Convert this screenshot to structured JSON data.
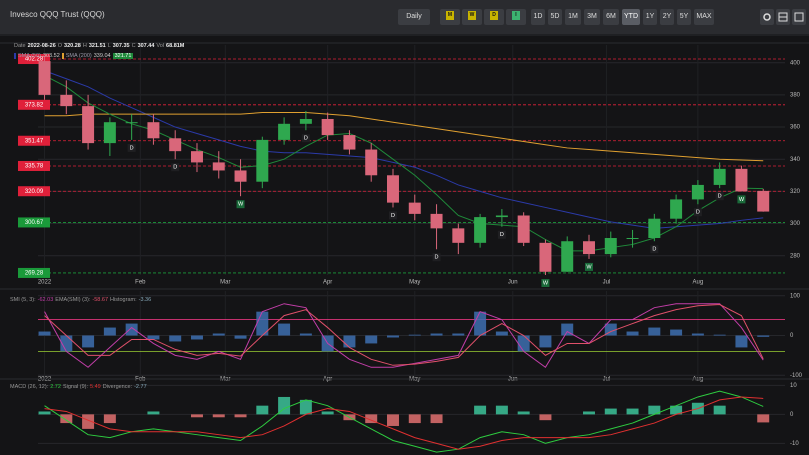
{
  "header": {
    "title": "Invesco QQQ Trust (QQQ)",
    "interval": "Daily",
    "chart_styles": [
      {
        "label": "M",
        "color": "#c8b400"
      },
      {
        "label": "W",
        "color": "#c8b400"
      },
      {
        "label": "D",
        "color": "#c8b400"
      },
      {
        "label": "I",
        "color": "#3cb371"
      }
    ],
    "ranges": [
      "1D",
      "5D",
      "1M",
      "3M",
      "6M",
      "YTD",
      "1Y",
      "2Y",
      "5Y",
      "MAX"
    ],
    "active_range": 5
  },
  "chart_data": [
    {
      "type": "candlestick",
      "readout": [
        {
          "label": "Date",
          "value": "2022-08-26"
        },
        {
          "label": "O",
          "value": 320.28
        },
        {
          "label": "H",
          "value": 321.51
        },
        {
          "label": "L",
          "value": 307.35
        },
        {
          "label": "C",
          "value": 307.44
        },
        {
          "label": "Vol",
          "value": "68.81M"
        }
      ],
      "open": [
        401,
        380,
        373,
        350,
        363,
        363,
        353,
        345,
        338,
        333,
        326,
        352,
        362,
        365,
        355,
        346,
        330,
        313,
        306,
        297,
        288,
        304,
        305,
        288,
        270,
        289,
        281,
        291,
        291,
        303,
        315,
        324,
        334,
        320.28
      ],
      "high": [
        404,
        389,
        380,
        366,
        368,
        368,
        358,
        350,
        345,
        340,
        354,
        366,
        370,
        369,
        358,
        350,
        334,
        318,
        312,
        300,
        306,
        309,
        307,
        290,
        292,
        293,
        295,
        296,
        306,
        318,
        327,
        338,
        336,
        321.51
      ],
      "low": [
        377,
        368,
        346,
        342,
        352,
        349,
        340,
        332,
        328,
        317,
        322,
        349,
        358,
        352,
        343,
        326,
        310,
        302,
        284,
        281,
        285,
        298,
        286,
        268,
        270,
        278,
        279,
        285,
        289,
        300,
        312,
        322,
        320,
        307.35
      ],
      "close": [
        380,
        373,
        350,
        363,
        363,
        353,
        345,
        338,
        333,
        326,
        352,
        362,
        365,
        355,
        346,
        330,
        313,
        306,
        297,
        288,
        304,
        305,
        288,
        270,
        289,
        281,
        291,
        291,
        303,
        315,
        324,
        334,
        320,
        307.44
      ],
      "up_color": "#2fa84f",
      "down_color": "#d9677a",
      "overlays": [
        {
          "name": "SMA (50)",
          "color": "#2b3aa8",
          "values": [
            395,
            390,
            385,
            378,
            372,
            366,
            360,
            356,
            352,
            348,
            345,
            344,
            344,
            343,
            342,
            341,
            338,
            335,
            330,
            324,
            320,
            316,
            313,
            310,
            307,
            304,
            301,
            299,
            297,
            298,
            299,
            300,
            302,
            303.52
          ]
        },
        {
          "name": "SMA (200)",
          "color": "#e0a030",
          "values": [
            367,
            367,
            368,
            368,
            368,
            368,
            368,
            368,
            368,
            368,
            369,
            369,
            369,
            368,
            367,
            365,
            363,
            361,
            359,
            357,
            355,
            353,
            351,
            349,
            347,
            346,
            345,
            344,
            343,
            342,
            341,
            340,
            339.5,
            339.04
          ]
        },
        {
          "color": "#1f8a3a",
          "values": [
            392,
            385,
            375,
            368,
            362,
            358,
            352,
            346,
            341,
            335,
            336,
            340,
            348,
            355,
            356,
            350,
            340,
            330,
            318,
            305,
            300,
            299,
            298,
            290,
            283,
            283,
            285,
            287,
            291,
            298,
            308,
            316,
            322,
            321.71
          ]
        }
      ],
      "levels": [
        402.28,
        373.82,
        351.47,
        335.78,
        320.09,
        300.67,
        269.28
      ],
      "level_colors": [
        "#e0203a",
        "#e0203a",
        "#e0203a",
        "#e0203a",
        "#e0203a",
        "#1a9a3a",
        "#1a9a3a"
      ],
      "signals": [
        {
          "x": 4,
          "label": "D"
        },
        {
          "x": 6,
          "label": "D"
        },
        {
          "x": 9,
          "label": "W"
        },
        {
          "x": 12,
          "label": "D"
        },
        {
          "x": 16,
          "label": "D"
        },
        {
          "x": 18,
          "label": "D"
        },
        {
          "x": 21,
          "label": "D"
        },
        {
          "x": 23,
          "label": "W"
        },
        {
          "x": 25,
          "label": "W"
        },
        {
          "x": 28,
          "label": "D"
        },
        {
          "x": 30,
          "label": "D"
        },
        {
          "x": 31,
          "label": "D"
        },
        {
          "x": 32,
          "label": "W"
        }
      ],
      "xlim": [
        -0.3,
        34
      ],
      "xticks": [
        {
          "value": 0,
          "label": "2022"
        },
        {
          "value": 4.4,
          "label": "Feb"
        },
        {
          "value": 8.3,
          "label": "Mar"
        },
        {
          "value": 13,
          "label": "Apr"
        },
        {
          "value": 17,
          "label": "May"
        },
        {
          "value": 21.5,
          "label": "Jun"
        },
        {
          "value": 25.8,
          "label": "Jul"
        },
        {
          "value": 30,
          "label": "Aug"
        }
      ],
      "ylim": [
        268,
        411
      ],
      "yticks": [
        280,
        300,
        320,
        340,
        360,
        380,
        400
      ],
      "grid": true
    },
    {
      "type": "oscillator",
      "series": [
        {
          "name": "SMI (5, 3):",
          "color": "#c23ea8",
          "values": [
            60,
            -40,
            -80,
            -30,
            20,
            -20,
            -50,
            -60,
            -40,
            -60,
            60,
            80,
            70,
            -20,
            -60,
            -80,
            -80,
            -70,
            -60,
            -50,
            60,
            40,
            -40,
            -80,
            10,
            -20,
            40,
            40,
            70,
            80,
            80,
            80,
            20,
            -62.03
          ]
        },
        {
          "name": "EMA(SMI) (3):",
          "color": "#e0506a",
          "values": [
            50,
            0,
            -50,
            -50,
            -10,
            -10,
            -35,
            -50,
            -45,
            -52,
            0,
            50,
            65,
            20,
            -30,
            -60,
            -75,
            -72,
            -65,
            -55,
            0,
            30,
            0,
            -50,
            -20,
            -20,
            10,
            30,
            50,
            65,
            75,
            78,
            50,
            -58.67
          ]
        }
      ],
      "histogram": {
        "name": "Histogram:",
        "color": "#3d6fb0",
        "values": [
          10,
          -40,
          -30,
          20,
          30,
          -10,
          -15,
          -10,
          5,
          -8,
          60,
          30,
          5,
          -40,
          -30,
          -20,
          -5,
          2,
          5,
          5,
          60,
          10,
          -40,
          -30,
          30,
          0,
          30,
          10,
          20,
          15,
          5,
          2,
          -30,
          -3.36
        ]
      },
      "levels": [
        40,
        -40
      ],
      "level_colors": [
        "#ff3a8c",
        "#9acd32"
      ],
      "ylim": [
        -112,
        112
      ],
      "yticks": [
        100,
        0,
        -100
      ]
    },
    {
      "type": "macd",
      "series": [
        {
          "name": "MACD (26, 12):",
          "color": "#2ecc40",
          "values": [
            3,
            -2,
            -7,
            -8,
            -6,
            -5,
            -6,
            -7,
            -8,
            -9,
            -4,
            2,
            5,
            3,
            -1,
            -5,
            -9,
            -11,
            -13,
            -12,
            -8,
            -6,
            -7,
            -10,
            -8,
            -7,
            -5,
            -3,
            0,
            3,
            6,
            8,
            6,
            2.72
          ]
        },
        {
          "name": "Signal (9):",
          "color": "#e03030",
          "values": [
            2,
            1,
            -2,
            -5,
            -6,
            -6,
            -6,
            -6,
            -7,
            -8,
            -7,
            -4,
            0,
            2,
            1,
            -2,
            -5,
            -8,
            -10,
            -12,
            -11,
            -9,
            -8,
            -8,
            -8,
            -8,
            -7,
            -5,
            -3,
            0,
            2,
            5,
            6,
            5.49
          ]
        }
      ],
      "histogram": {
        "name": "Divergence:",
        "up_color": "#3cc39a",
        "down_color": "#e07070",
        "values": [
          1,
          -3,
          -5,
          -3,
          0,
          1,
          0,
          -1,
          -1,
          -1,
          3,
          6,
          5,
          1,
          -2,
          -3,
          -4,
          -3,
          -3,
          0,
          3,
          3,
          1,
          -2,
          0,
          1,
          2,
          2,
          3,
          3,
          4,
          3,
          0,
          -2.77
        ]
      },
      "ylim": [
        -14,
        11.5
      ],
      "yticks": [
        10,
        0,
        -10
      ]
    }
  ]
}
